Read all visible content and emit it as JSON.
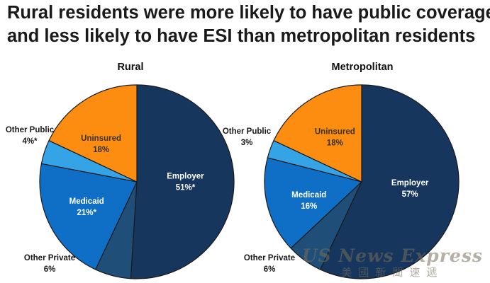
{
  "title_line1": "Rural residents were more likely to have public coverage",
  "title_line2": "and less likely to have ESI than metropolitan residents",
  "watermark": {
    "main": "US News Express",
    "sub": "美國新聞速遞"
  },
  "colors": {
    "employer": "#17365d",
    "other_private": "#1f4e79",
    "medicaid": "#0f6fc6",
    "other_public": "#35a4e6",
    "uninsured": "#fd8d10"
  },
  "chart_data": [
    {
      "type": "pie",
      "title": "Rural",
      "slices": [
        {
          "key": "employer",
          "label": "Employer",
          "value_text": "51%*",
          "value": 51,
          "text_color": "#ffffff"
        },
        {
          "key": "other_private",
          "label": "Other Private",
          "value_text": "6%",
          "value": 6,
          "text_color": "#1a1a1a"
        },
        {
          "key": "medicaid",
          "label": "Medicaid",
          "value_text": "21%*",
          "value": 21,
          "text_color": "#ffffff"
        },
        {
          "key": "other_public",
          "label": "Other Public",
          "value_text": "4%*",
          "value": 4,
          "text_color": "#1a1a1a"
        },
        {
          "key": "uninsured",
          "label": "Uninsured",
          "value_text": "18%",
          "value": 18,
          "text_color": "#333333"
        }
      ]
    },
    {
      "type": "pie",
      "title": "Metropolitan",
      "slices": [
        {
          "key": "employer",
          "label": "Employer",
          "value_text": "57%",
          "value": 57,
          "text_color": "#ffffff"
        },
        {
          "key": "other_private",
          "label": "Other Private",
          "value_text": "6%",
          "value": 6,
          "text_color": "#1a1a1a"
        },
        {
          "key": "medicaid",
          "label": "Medicaid",
          "value_text": "16%",
          "value": 16,
          "text_color": "#ffffff"
        },
        {
          "key": "other_public",
          "label": "Other Public",
          "value_text": "3%",
          "value": 3,
          "text_color": "#1a1a1a"
        },
        {
          "key": "uninsured",
          "label": "Uninsured",
          "value_text": "18%",
          "value": 18,
          "text_color": "#333333"
        }
      ]
    }
  ]
}
